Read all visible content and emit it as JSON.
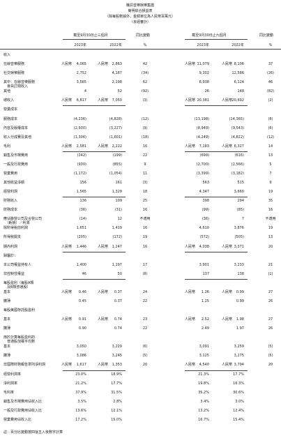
{
  "header": {
    "lines": [
      "騰訊音樂娛樂集團",
      "簡明綜合損益表",
      "（除每股數據外，金額單位為人民幣百萬元）",
      "（未經審計）"
    ]
  },
  "columns": {
    "group1": "截至9月30日止三個月",
    "change1": "同比變動",
    "group2": "截至9月30日止九個月",
    "change2": "同比變動",
    "sub": [
      "2023年",
      "2022年",
      "%",
      "2023年",
      "2022年",
      "%"
    ],
    "currency": "人民幣"
  },
  "rows": [
    [
      "收入",
      null,
      null,
      null,
      null,
      null,
      null
    ],
    [
      "在線音樂服務",
      "4,065",
      "2,863",
      "42",
      "11,079",
      "8,106",
      "37"
    ],
    [
      "社交娛樂服務",
      "2,752",
      "4,187",
      "(34)",
      "9,302",
      "12,586",
      "(26)"
    ],
    [
      "其中：在線音樂服務\n　會員訂閱收入",
      "3,565",
      "2,198",
      "62",
      "8,938",
      "6,124",
      "46"
    ],
    [
      "其他",
      "4",
      "52",
      "(92)",
      "26",
      "148",
      "(82)"
    ],
    [
      "總收入",
      "6,817",
      "7,050",
      "(3)",
      "20,381",
      "20,692",
      "(2)"
    ],
    [
      "營業成本",
      null,
      null,
      null,
      null,
      null,
      null
    ],
    [
      "服務成本",
      "(4,236)",
      "(4,828)",
      "(12)",
      "(13,198)",
      "(14,365)",
      "(8)"
    ],
    [
      "內容及版權成本",
      "(2,930)",
      "(3,227)",
      "(9)",
      "(8,949)",
      "(9,543)",
      "(6)"
    ],
    [
      "收入分成費及其他",
      "(1,306)",
      "(1,601)",
      "(18)",
      "(4,249)",
      "(4,822)",
      "(12)"
    ],
    [
      "毛利",
      "2,581",
      "2,222",
      "16",
      "7,183",
      "6,327",
      "14"
    ],
    [
      "銷售及市場費用",
      "(242)",
      "(199)",
      "22",
      "(699)",
      "(616)",
      "13"
    ],
    [
      "一般及行政費用",
      "(930)",
      "(855)",
      "9",
      "(2,700)",
      "(2,566)",
      "5"
    ],
    [
      "營業費用",
      "(1,172)",
      "(1,054)",
      "11",
      "(3,399)",
      "(3,182)",
      "7"
    ],
    [
      "其他收益淨額",
      "156",
      "161",
      "(3)",
      "563",
      "515",
      "9"
    ],
    [
      "經營利潤",
      "1,565",
      "1,329",
      "18",
      "4,347",
      "3,660",
      "19"
    ],
    [
      "財務收入",
      "136",
      "109",
      "25",
      "398",
      "294",
      "35"
    ],
    [
      "財務成本",
      "(36)",
      "(31)",
      "16",
      "(99)",
      "(85)",
      "16"
    ],
    [
      "應佔聯營公司及合營公司\n　（虧損）／利潤",
      "(14)",
      "12",
      "不適用",
      "(36)",
      "7",
      "不適用"
    ],
    [
      "除所得稅前利潤",
      "1,651",
      "1,419",
      "16",
      "4,610",
      "3,876",
      "19"
    ],
    [
      "所得稅開支",
      "(205)",
      "(172)",
      "19",
      "(572)",
      "(505)",
      "13"
    ],
    [
      "期內利潤",
      "1,446",
      "1,247",
      "16",
      "4,038",
      "3,371",
      "20"
    ],
    [
      "歸屬於：",
      null,
      null,
      null,
      null,
      null,
      null
    ],
    [
      "本公司權益持有人",
      "1,400",
      "1,197",
      "17",
      "3,901",
      "3,233",
      "21"
    ],
    [
      "非控制性權益",
      "46",
      "50",
      "(8)",
      "137",
      "138",
      "(1)"
    ],
    [
      "每股盈利（每股A類\n　及B類普通股）",
      null,
      null,
      null,
      null,
      null,
      null
    ],
    [
      "基本",
      "0.46",
      "0.37",
      "24",
      "1.26",
      "0.99",
      "27"
    ],
    [
      "攤薄",
      "0.45",
      "0.37",
      "22",
      "1.25",
      "0.99",
      "26"
    ],
    [
      "每股美國存託股盈利",
      null,
      null,
      null,
      null,
      null,
      null
    ],
    [
      "基本",
      "0.91",
      "0.74",
      "23",
      "2.52",
      "1.98",
      "27"
    ],
    [
      "攤薄",
      "0.90",
      "0.74",
      "22",
      "2.49",
      "1.97",
      "26"
    ],
    [
      "用於計算每股盈利的\n　普通股加權平均數",
      null,
      null,
      null,
      null,
      null,
      null
    ],
    [
      "基本",
      "3,050",
      "3,229",
      "(6)",
      "3,091",
      "3,259",
      "(5)"
    ],
    [
      "攤薄",
      "3,086",
      "3,245",
      "(5)",
      "3,125",
      "3,275",
      "(5)"
    ],
    [
      "非國際財務報告準則淨利潤",
      "1,617",
      "1,353",
      "20",
      "4,540",
      "3,794",
      "20"
    ],
    [
      "經營利潤率",
      "23.0%",
      "18.9%",
      null,
      "21.3%",
      "17.7%",
      null
    ],
    [
      "淨利潤率",
      "21.2%",
      "17.7%",
      null,
      "19.8%",
      "16.3%",
      null
    ],
    [
      "毛利率",
      "37.9%",
      "31.5%",
      null,
      "35.2%",
      "30.6%",
      null
    ],
    [
      "銷售及市場費用佔收入比",
      "3.5%",
      "2.8%",
      null,
      "3.4%",
      "3.0%",
      null
    ],
    [
      "一般及行政費用佔收入比",
      "13.6%",
      "12.1%",
      null,
      "13.2%",
      "12.4%",
      null
    ],
    [
      "營業費用佔收入比",
      "17.2%",
      "15.0%",
      null,
      "16.7%",
      "15.4%",
      null
    ]
  ],
  "footnote": "註：百分比變動按四捨五入後數字計算"
}
